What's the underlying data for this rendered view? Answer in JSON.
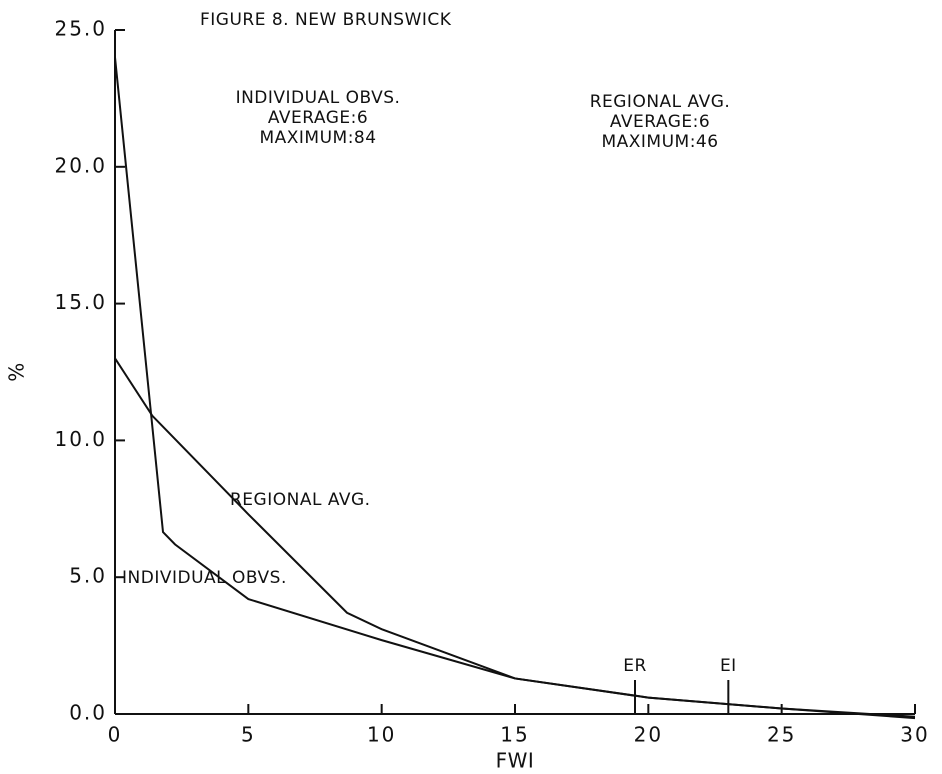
{
  "chart_data": {
    "type": "line",
    "title": "FIGURE 8. NEW BRUNSWICK",
    "x_label": "FWI",
    "y_label": "%",
    "xlim": [
      0,
      30
    ],
    "ylim": [
      0,
      25
    ],
    "xticks": [
      0,
      5,
      10,
      15,
      20,
      25,
      30
    ],
    "yticks": [
      {
        "value": 0,
        "label": "0.0"
      },
      {
        "value": 5,
        "label": "5.0"
      },
      {
        "value": 10,
        "label": "10.0"
      },
      {
        "value": 15,
        "label": "15.0"
      },
      {
        "value": 20,
        "label": "20.0"
      },
      {
        "value": 25,
        "label": "25.0"
      }
    ],
    "series": [
      {
        "name": "INDIVIDUAL OBVS.",
        "color": "#111111",
        "x": [
          0,
          1.8,
          2.25,
          5,
          10,
          15,
          20,
          25,
          30
        ],
        "values": [
          24,
          6.65,
          6.2,
          4.2,
          2.7,
          1.3,
          0.6,
          0.2,
          -0.15
        ]
      },
      {
        "name": "REGIONAL AVG.",
        "color": "#111111",
        "x": [
          0,
          1.4,
          2,
          5,
          8.7,
          10,
          15,
          20,
          25,
          30
        ],
        "values": [
          13,
          10.9,
          10.3,
          7.3,
          3.7,
          3.1,
          1.3,
          0.6,
          0.2,
          -0.1
        ]
      }
    ],
    "stats": [
      {
        "name": "INDIVIDUAL OBVS.",
        "average": "AVERAGE:6",
        "maximum": "MAXIMUM:84"
      },
      {
        "name": "REGIONAL AVG.",
        "average": "AVERAGE:6",
        "maximum": "MAXIMUM:46"
      }
    ],
    "markers": [
      {
        "label": "ER",
        "x": 19.5
      },
      {
        "label": "EI",
        "x": 23
      }
    ]
  }
}
